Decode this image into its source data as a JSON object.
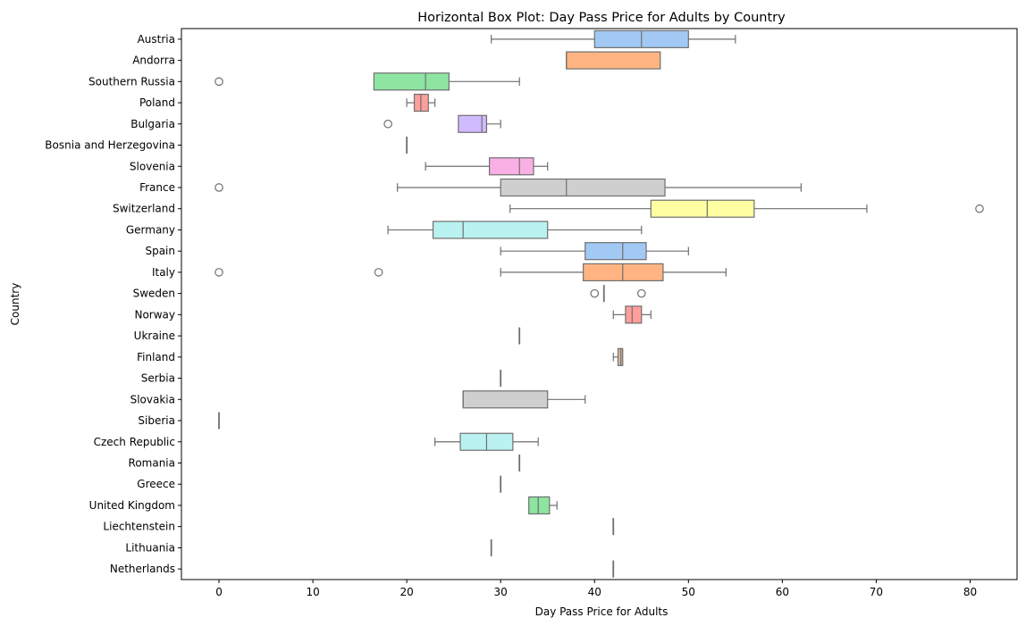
{
  "chart_data": {
    "type": "box",
    "orientation": "horizontal",
    "title": "Horizontal Box Plot: Day Pass Price for Adults by Country",
    "xlabel": "Day Pass Price for Adults",
    "ylabel": "Country",
    "xlim": [
      -4,
      85
    ],
    "x_ticks": [
      0,
      10,
      20,
      30,
      40,
      50,
      60,
      70,
      80
    ],
    "grid": false,
    "legend": "none",
    "palette": [
      "#a1c9f4",
      "#ffb482",
      "#8de5a1",
      "#ff9f9b",
      "#d0bbff",
      "#debb9b",
      "#fab0e4",
      "#cfcfcf",
      "#fffea3",
      "#b9f2f0"
    ],
    "line_color": "#6f6f6f",
    "categories": [
      "Austria",
      "Andorra",
      "Southern Russia",
      "Poland",
      "Bulgaria",
      "Bosnia and Herzegovina",
      "Slovenia",
      "France",
      "Switzerland",
      "Germany",
      "Spain",
      "Italy",
      "Sweden",
      "Norway",
      "Ukraine",
      "Finland",
      "Serbia",
      "Slovakia",
      "Siberia",
      "Czech Republic",
      "Romania",
      "Greece",
      "United Kingdom",
      "Liechtenstein",
      "Lithuania",
      "Netherlands"
    ],
    "boxes": [
      {
        "country": "Austria",
        "whisker_low": 29,
        "q1": 40,
        "median": 45,
        "q3": 50,
        "whisker_high": 55,
        "outliers": []
      },
      {
        "country": "Andorra",
        "whisker_low": 37,
        "q1": 37,
        "median": 37,
        "q3": 47,
        "whisker_high": 47,
        "outliers": []
      },
      {
        "country": "Southern Russia",
        "whisker_low": 16.5,
        "q1": 16.5,
        "median": 22,
        "q3": 24.5,
        "whisker_high": 32,
        "outliers": [
          0
        ]
      },
      {
        "country": "Poland",
        "whisker_low": 20,
        "q1": 20.8,
        "median": 21.5,
        "q3": 22.3,
        "whisker_high": 23,
        "outliers": []
      },
      {
        "country": "Bulgaria",
        "whisker_low": 25.5,
        "q1": 25.5,
        "median": 28,
        "q3": 28.5,
        "whisker_high": 30,
        "outliers": [
          18
        ]
      },
      {
        "country": "Bosnia and Herzegovina",
        "whisker_low": 20,
        "q1": 20,
        "median": 20,
        "q3": 20,
        "whisker_high": 20,
        "outliers": []
      },
      {
        "country": "Slovenia",
        "whisker_low": 22,
        "q1": 28.8,
        "median": 32,
        "q3": 33.5,
        "whisker_high": 35,
        "outliers": []
      },
      {
        "country": "France",
        "whisker_low": 19,
        "q1": 30,
        "median": 37,
        "q3": 47.5,
        "whisker_high": 62,
        "outliers": [
          0
        ]
      },
      {
        "country": "Switzerland",
        "whisker_low": 31,
        "q1": 46,
        "median": 52,
        "q3": 57,
        "whisker_high": 69,
        "outliers": [
          81
        ]
      },
      {
        "country": "Germany",
        "whisker_low": 18,
        "q1": 22.8,
        "median": 26,
        "q3": 35,
        "whisker_high": 45,
        "outliers": []
      },
      {
        "country": "Spain",
        "whisker_low": 30,
        "q1": 39,
        "median": 43,
        "q3": 45.5,
        "whisker_high": 50,
        "outliers": []
      },
      {
        "country": "Italy",
        "whisker_low": 30,
        "q1": 38.8,
        "median": 43,
        "q3": 47.3,
        "whisker_high": 54,
        "outliers": [
          0,
          17
        ]
      },
      {
        "country": "Sweden",
        "whisker_low": 41,
        "q1": 41,
        "median": 41,
        "q3": 41,
        "whisker_high": 41,
        "outliers": [
          40,
          45
        ]
      },
      {
        "country": "Norway",
        "whisker_low": 42,
        "q1": 43.3,
        "median": 44,
        "q3": 45,
        "whisker_high": 46,
        "outliers": []
      },
      {
        "country": "Ukraine",
        "whisker_low": 32,
        "q1": 32,
        "median": 32,
        "q3": 32,
        "whisker_high": 32,
        "outliers": []
      },
      {
        "country": "Finland",
        "whisker_low": 42,
        "q1": 42.5,
        "median": 42.8,
        "q3": 43,
        "whisker_high": 43,
        "outliers": []
      },
      {
        "country": "Serbia",
        "whisker_low": 30,
        "q1": 30,
        "median": 30,
        "q3": 30,
        "whisker_high": 30,
        "outliers": []
      },
      {
        "country": "Slovakia",
        "whisker_low": 26,
        "q1": 26,
        "median": 26,
        "q3": 35,
        "whisker_high": 39,
        "outliers": []
      },
      {
        "country": "Siberia",
        "whisker_low": 0,
        "q1": 0,
        "median": 0,
        "q3": 0,
        "whisker_high": 0,
        "outliers": []
      },
      {
        "country": "Czech Republic",
        "whisker_low": 23,
        "q1": 25.7,
        "median": 28.5,
        "q3": 31.3,
        "whisker_high": 34,
        "outliers": []
      },
      {
        "country": "Romania",
        "whisker_low": 32,
        "q1": 32,
        "median": 32,
        "q3": 32,
        "whisker_high": 32,
        "outliers": []
      },
      {
        "country": "Greece",
        "whisker_low": 30,
        "q1": 30,
        "median": 30,
        "q3": 30,
        "whisker_high": 30,
        "outliers": []
      },
      {
        "country": "United Kingdom",
        "whisker_low": 33,
        "q1": 33,
        "median": 34,
        "q3": 35.2,
        "whisker_high": 36,
        "outliers": []
      },
      {
        "country": "Liechtenstein",
        "whisker_low": 42,
        "q1": 42,
        "median": 42,
        "q3": 42,
        "whisker_high": 42,
        "outliers": []
      },
      {
        "country": "Lithuania",
        "whisker_low": 29,
        "q1": 29,
        "median": 29,
        "q3": 29,
        "whisker_high": 29,
        "outliers": []
      },
      {
        "country": "Netherlands",
        "whisker_low": 42,
        "q1": 42,
        "median": 42,
        "q3": 42,
        "whisker_high": 42,
        "outliers": []
      }
    ]
  }
}
